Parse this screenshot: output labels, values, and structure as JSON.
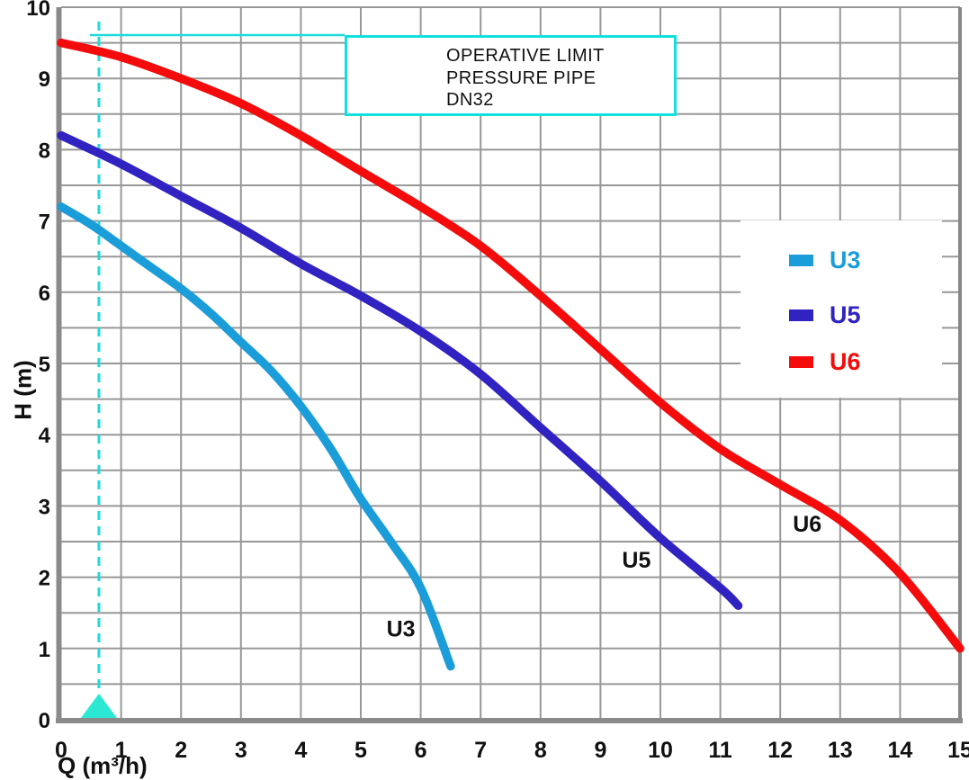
{
  "axes": {
    "x_label": "Q (m³/h)",
    "y_label": "H (m)",
    "x_ticks": [
      0,
      1,
      2,
      3,
      4,
      5,
      6,
      7,
      8,
      9,
      10,
      11,
      12,
      13,
      14,
      15
    ],
    "y_ticks": [
      0,
      1,
      2,
      3,
      4,
      5,
      6,
      7,
      8,
      9,
      10
    ]
  },
  "title_box": {
    "lines": [
      "OPERATIVE LIMIT",
      "PRESSURE PIPE",
      "DN32"
    ],
    "border_color": "#12E0E0"
  },
  "legend": {
    "items": [
      {
        "label": "U3",
        "color": "#1B9DD9"
      },
      {
        "label": "U5",
        "color": "#3023C1"
      },
      {
        "label": "U6",
        "color": "#F40B0B"
      }
    ]
  },
  "colors": {
    "grid": "#989898",
    "axis_border": "#8A8A8A",
    "right_border": "#868686",
    "text": "#111111"
  },
  "chart_data": {
    "type": "line",
    "title": "",
    "xlabel": "Q (m³/h)",
    "ylabel": "H (m)",
    "xlim": [
      0,
      15
    ],
    "ylim": [
      0,
      10
    ],
    "grid": {
      "x_step": 1,
      "y_step": 0.5
    },
    "legend_position": "middle-right",
    "series": [
      {
        "name": "U3",
        "color": "#1B9DD9",
        "points": [
          [
            0,
            7.2
          ],
          [
            0.5,
            6.95
          ],
          [
            1,
            6.65
          ],
          [
            1.5,
            6.35
          ],
          [
            2,
            6.05
          ],
          [
            2.5,
            5.7
          ],
          [
            3,
            5.3
          ],
          [
            3.5,
            4.9
          ],
          [
            4,
            4.4
          ],
          [
            4.5,
            3.8
          ],
          [
            5,
            3.1
          ],
          [
            5.5,
            2.5
          ],
          [
            6,
            1.85
          ],
          [
            6.5,
            0.75
          ]
        ]
      },
      {
        "name": "U5",
        "color": "#3023C1",
        "points": [
          [
            0,
            8.2
          ],
          [
            1,
            7.8
          ],
          [
            2,
            7.35
          ],
          [
            3,
            6.9
          ],
          [
            4,
            6.4
          ],
          [
            5,
            5.95
          ],
          [
            6,
            5.45
          ],
          [
            7,
            4.85
          ],
          [
            8,
            4.1
          ],
          [
            9,
            3.35
          ],
          [
            10,
            2.55
          ],
          [
            11,
            1.85
          ],
          [
            11.3,
            1.6
          ]
        ]
      },
      {
        "name": "U6",
        "color": "#F40B0B",
        "points": [
          [
            0,
            9.5
          ],
          [
            1,
            9.3
          ],
          [
            2,
            9.0
          ],
          [
            3,
            8.65
          ],
          [
            4,
            8.2
          ],
          [
            5,
            7.7
          ],
          [
            6,
            7.2
          ],
          [
            7,
            6.65
          ],
          [
            8,
            5.95
          ],
          [
            9,
            5.2
          ],
          [
            10,
            4.45
          ],
          [
            11,
            3.8
          ],
          [
            12,
            3.3
          ],
          [
            13,
            2.8
          ],
          [
            14,
            2.05
          ],
          [
            15,
            1.0
          ]
        ]
      }
    ],
    "curve_labels": [
      {
        "text": "U3",
        "x": 5.67,
        "y": 1.28
      },
      {
        "text": "U5",
        "x": 9.6,
        "y": 2.25
      },
      {
        "text": "U6",
        "x": 12.45,
        "y": 2.75
      }
    ],
    "operative_limit": {
      "q": 0.63,
      "line_color": "#1FD9DC",
      "marker_color": "#2BE8D2"
    }
  }
}
